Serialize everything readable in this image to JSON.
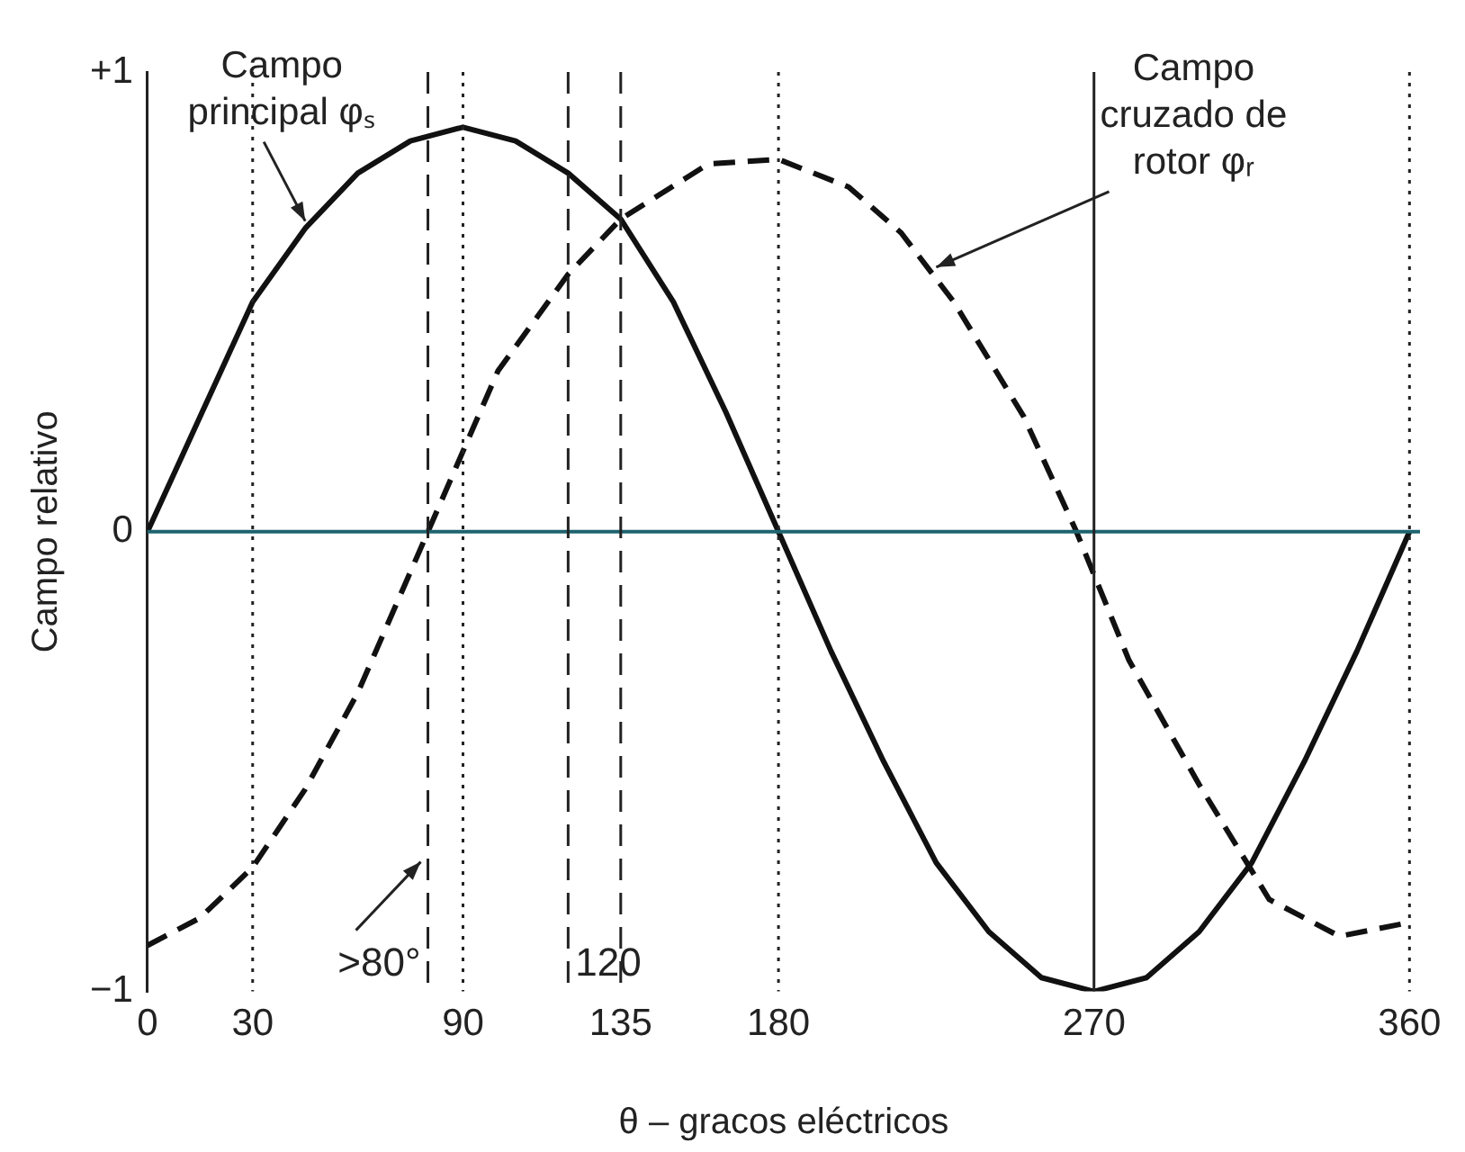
{
  "chart_data": {
    "type": "line",
    "xlabel": "θ – gracos eléctricos",
    "ylabel": "Campo relativo",
    "xlim": [
      0,
      363
    ],
    "xticks": [
      0,
      30,
      90,
      135,
      180,
      270,
      360
    ],
    "ylim": [
      -1,
      1
    ],
    "yticks": [
      {
        "value": -1,
        "label": "−1"
      },
      0,
      {
        "value": 1,
        "label": "+1"
      }
    ],
    "series": [
      {
        "color": "#111111",
        "line_style": "solid",
        "x": [
          0,
          15,
          30,
          45,
          60,
          75,
          90,
          105,
          120,
          135,
          150,
          165,
          180,
          195,
          210,
          225,
          240,
          255,
          270,
          285,
          300,
          315,
          330,
          345,
          360
        ],
        "values": [
          0,
          0.25,
          0.5,
          0.66,
          0.78,
          0.85,
          0.88,
          0.85,
          0.78,
          0.68,
          0.5,
          0.26,
          0,
          -0.26,
          -0.5,
          -0.72,
          -0.87,
          -0.97,
          -1,
          -0.97,
          -0.87,
          -0.72,
          -0.5,
          -0.26,
          0
        ]
      },
      {
        "color": "#111111",
        "line_style": "dashed",
        "x": [
          0,
          15,
          30,
          45,
          60,
          80,
          100,
          120,
          135,
          160,
          180,
          200,
          215,
          230,
          250,
          265,
          280,
          300,
          320,
          340,
          360
        ],
        "values": [
          -0.9,
          -0.84,
          -0.73,
          -0.56,
          -0.35,
          0,
          0.35,
          0.56,
          0.68,
          0.8,
          0.81,
          0.75,
          0.65,
          0.5,
          0.25,
          0,
          -0.28,
          -0.55,
          -0.8,
          -0.88,
          -0.85
        ]
      }
    ],
    "ref_lines": [
      {
        "axis": "y",
        "value": 0,
        "color": "#1f6470",
        "line_style": "solid"
      },
      {
        "axis": "x",
        "value": 30,
        "line_style": "dotted"
      },
      {
        "axis": "x",
        "value": 80,
        "line_style": "dashed",
        "label": ">80°"
      },
      {
        "axis": "x",
        "value": 90,
        "line_style": "dotted"
      },
      {
        "axis": "x",
        "value": 120,
        "line_style": "dashed",
        "label": "120"
      },
      {
        "axis": "x",
        "value": 135,
        "line_style": "dashed"
      },
      {
        "axis": "x",
        "value": 180,
        "line_style": "dotted"
      },
      {
        "axis": "x",
        "value": 270,
        "line_style": "solid"
      },
      {
        "axis": "x",
        "value": 360,
        "line_style": "dotted"
      }
    ],
    "annotations": [
      {
        "text": "Campo principal φₛ",
        "x": 45,
        "y": 0.66
      },
      {
        "text": "Campo cruzado de rotor φᵣ",
        "x": 225,
        "y": 0.56
      }
    ],
    "grid": false,
    "legend": false,
    "marker": "none"
  }
}
